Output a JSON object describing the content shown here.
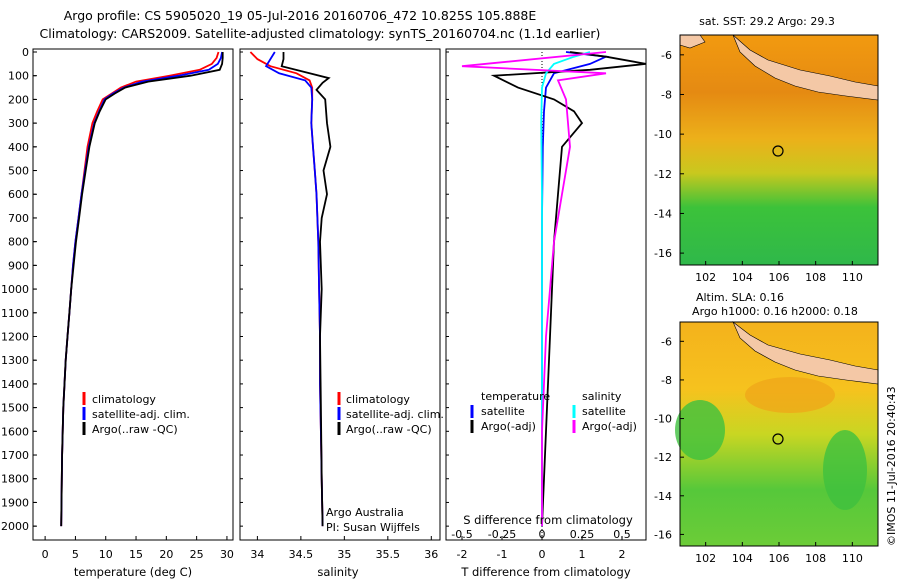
{
  "header": {
    "line1": "Argo profile: CS 5905020_19 05-Jul-2016 20160706_472 10.825S 105.888E",
    "line2": "Climatology: CARS2009. Satellite-adjusted climatology: synTS_20160704.nc (1.1d earlier)"
  },
  "colors": {
    "climatology": "#ff0000",
    "satellite": "#0000ff",
    "argo": "#000000",
    "sat_salinity": "#00ffff",
    "argo_salinity": "#ff00ff",
    "land": "#f4c8a6"
  },
  "depth_axis": {
    "ticks": [
      "0",
      "100",
      "200",
      "300",
      "400",
      "500",
      "600",
      "700",
      "800",
      "900",
      "1000",
      "1100",
      "1200",
      "1300",
      "1400",
      "1500",
      "1600",
      "1700",
      "1800",
      "1900",
      "2000"
    ]
  },
  "panels": {
    "temperature": {
      "xlabel": "temperature (deg C)",
      "xticks": [
        "0",
        "5",
        "10",
        "15",
        "20",
        "25",
        "30"
      ],
      "legend": [
        "climatology",
        "satellite-adj. clim.",
        "Argo(..raw -QC)"
      ]
    },
    "salinity": {
      "xlabel": "salinity",
      "xticks": [
        "34",
        "34.5",
        "35",
        "35.5",
        "36"
      ],
      "legend": [
        "climatology",
        "satellite-adj. clim.",
        "Argo(..raw -QC)"
      ],
      "credit1": "Argo Australia",
      "credit2": "PI: Susan Wijffels"
    },
    "difference": {
      "xlabel": "T difference from climatology",
      "xticks": [
        "-2",
        "-1",
        "0",
        "1",
        "2"
      ],
      "s_label": "S difference from climatology",
      "s_ticks": [
        "-0.5",
        "-0.25",
        "0",
        "0.25",
        "0.5"
      ],
      "legend_temp_head": "temperature",
      "legend_sal_head": "salinity",
      "legend_temp": [
        "satellite",
        "Argo(-adj)"
      ],
      "legend_sal": [
        "satellite",
        "Argo(-adj)"
      ]
    }
  },
  "maps": {
    "sst_title": "sat. SST: 29.2  Argo: 29.3",
    "sla_title1": "Altim. SLA: 0.16",
    "sla_title2": "Argo h1000: 0.16  h2000: 0.18",
    "lat_ticks": [
      "-6",
      "-8",
      "-10",
      "-12",
      "-14",
      "-16"
    ],
    "lon_ticks": [
      "102",
      "104",
      "106",
      "108",
      "110"
    ],
    "float_position": {
      "lon": 105.888,
      "lat": -10.825
    }
  },
  "footer": "©IMOS 11-Jul-2016 20:40:43",
  "chart_data": [
    {
      "type": "line",
      "title": "",
      "xlabel": "temperature (deg C)",
      "ylabel": "",
      "xlim": [
        -2,
        31
      ],
      "ylim": [
        2050,
        0
      ],
      "series": [
        {
          "name": "climatology",
          "x": [
            28.6,
            28.3,
            27.5,
            25.5,
            20.5,
            15,
            12.5,
            11,
            9.5,
            8.6,
            7.8,
            7,
            6.5,
            6,
            5.5,
            5,
            4.6,
            4.3,
            4,
            3.7,
            3.4,
            3.2,
            3,
            2.9,
            2.8,
            2.7,
            2.65
          ],
          "y": [
            0,
            25,
            50,
            75,
            100,
            125,
            150,
            175,
            200,
            250,
            300,
            400,
            500,
            600,
            700,
            800,
            900,
            1000,
            1100,
            1200,
            1300,
            1400,
            1500,
            1600,
            1700,
            1900,
            2000
          ]
        },
        {
          "name": "satellite-adj. clim.",
          "x": [
            29.2,
            29,
            28.5,
            27,
            22,
            16,
            13,
            11.2,
            9.8,
            8.9,
            8.1,
            7.2,
            6.6,
            6,
            5.5,
            5,
            4.6,
            4.3,
            4,
            3.7,
            3.4,
            3.2,
            3,
            2.9,
            2.8,
            2.7,
            2.65
          ],
          "y": [
            0,
            25,
            50,
            75,
            100,
            125,
            150,
            175,
            200,
            250,
            300,
            400,
            500,
            600,
            700,
            800,
            900,
            1000,
            1100,
            1200,
            1300,
            1400,
            1500,
            1600,
            1700,
            1900,
            2000
          ]
        },
        {
          "name": "Argo(..raw -QC)",
          "x": [
            29.3,
            29.3,
            29.2,
            28.8,
            24,
            17,
            13.2,
            11.5,
            10,
            9,
            8.2,
            7.3,
            6.7,
            6.1,
            5.6,
            5.1,
            4.7,
            4.3,
            4,
            3.7,
            3.4,
            3.2,
            3,
            2.9,
            2.8,
            2.7,
            2.65
          ],
          "y": [
            0,
            25,
            50,
            75,
            100,
            125,
            150,
            175,
            200,
            250,
            300,
            400,
            500,
            600,
            700,
            800,
            900,
            1000,
            1100,
            1200,
            1300,
            1400,
            1500,
            1600,
            1700,
            1900,
            2000
          ]
        }
      ]
    },
    {
      "type": "line",
      "title": "",
      "xlabel": "salinity",
      "ylabel": "",
      "xlim": [
        33.8,
        36.1
      ],
      "ylim": [
        2050,
        0
      ],
      "series": [
        {
          "name": "climatology",
          "x": [
            33.92,
            34.0,
            34.15,
            34.45,
            34.6,
            34.63,
            34.63,
            34.62,
            34.64,
            34.66,
            34.68,
            34.69,
            34.7,
            34.71,
            34.72,
            34.72,
            34.73,
            34.74,
            34.75
          ],
          "y": [
            0,
            30,
            60,
            90,
            120,
            150,
            200,
            300,
            400,
            500,
            600,
            700,
            800,
            1000,
            1200,
            1400,
            1600,
            1800,
            2000
          ]
        },
        {
          "name": "satellite-adj. clim.",
          "x": [
            34.2,
            34.15,
            34.1,
            34.25,
            34.55,
            34.62,
            34.63,
            34.62,
            34.64,
            34.66,
            34.68,
            34.69,
            34.7,
            34.71,
            34.72,
            34.72,
            34.73,
            34.74,
            34.75
          ],
          "y": [
            0,
            30,
            60,
            90,
            120,
            150,
            200,
            300,
            400,
            500,
            600,
            700,
            800,
            1000,
            1200,
            1400,
            1600,
            1800,
            2000
          ]
        },
        {
          "name": "Argo(..raw -QC)",
          "x": [
            34.3,
            34.3,
            34.28,
            34.6,
            34.82,
            34.75,
            34.68,
            34.78,
            34.8,
            34.84,
            34.76,
            34.8,
            34.74,
            34.72,
            34.74,
            34.72,
            34.73,
            34.74,
            34.75
          ],
          "y": [
            0,
            30,
            60,
            90,
            110,
            130,
            160,
            200,
            300,
            400,
            500,
            600,
            700,
            800,
            1000,
            1200,
            1500,
            1800,
            2000
          ]
        }
      ]
    },
    {
      "type": "line",
      "title": "",
      "xlabel": "T difference from climatology",
      "ylabel": "",
      "xlim": [
        -2.4,
        2.6
      ],
      "ylim": [
        2050,
        0
      ],
      "series": [
        {
          "name": "temperature satellite",
          "x": [
            0.6,
            1.6,
            1.2,
            0.3,
            0.1,
            0.05,
            0.02,
            0.0,
            0.0,
            0.0,
            0.0
          ],
          "y": [
            0,
            20,
            50,
            90,
            150,
            250,
            400,
            700,
            1000,
            1500,
            2000
          ]
        },
        {
          "name": "temperature Argo(-adj)",
          "x": [
            0.7,
            1.6,
            2.6,
            1.2,
            -1.2,
            -0.6,
            0.3,
            0.8,
            1.0,
            0.5,
            0.4,
            0.3,
            0.2,
            0.1,
            0.0
          ],
          "y": [
            0,
            20,
            50,
            75,
            100,
            150,
            200,
            250,
            300,
            400,
            600,
            800,
            1200,
            1600,
            2000
          ]
        },
        {
          "name": "salinity satellite",
          "x": [
            1.2,
            0.8,
            0.3,
            0.1,
            0.0,
            -0.02,
            0.0,
            0.0,
            0.0
          ],
          "y": [
            0,
            20,
            50,
            90,
            150,
            300,
            600,
            1200,
            2000
          ]
        },
        {
          "name": "salinity Argo(-adj)",
          "x": [
            1.6,
            -2.0,
            1.6,
            0.4,
            0.6,
            0.7,
            0.5,
            0.3,
            0.1,
            0.0,
            0.0
          ],
          "y": [
            0,
            60,
            90,
            120,
            200,
            400,
            600,
            800,
            1200,
            1600,
            2000
          ]
        }
      ]
    }
  ]
}
